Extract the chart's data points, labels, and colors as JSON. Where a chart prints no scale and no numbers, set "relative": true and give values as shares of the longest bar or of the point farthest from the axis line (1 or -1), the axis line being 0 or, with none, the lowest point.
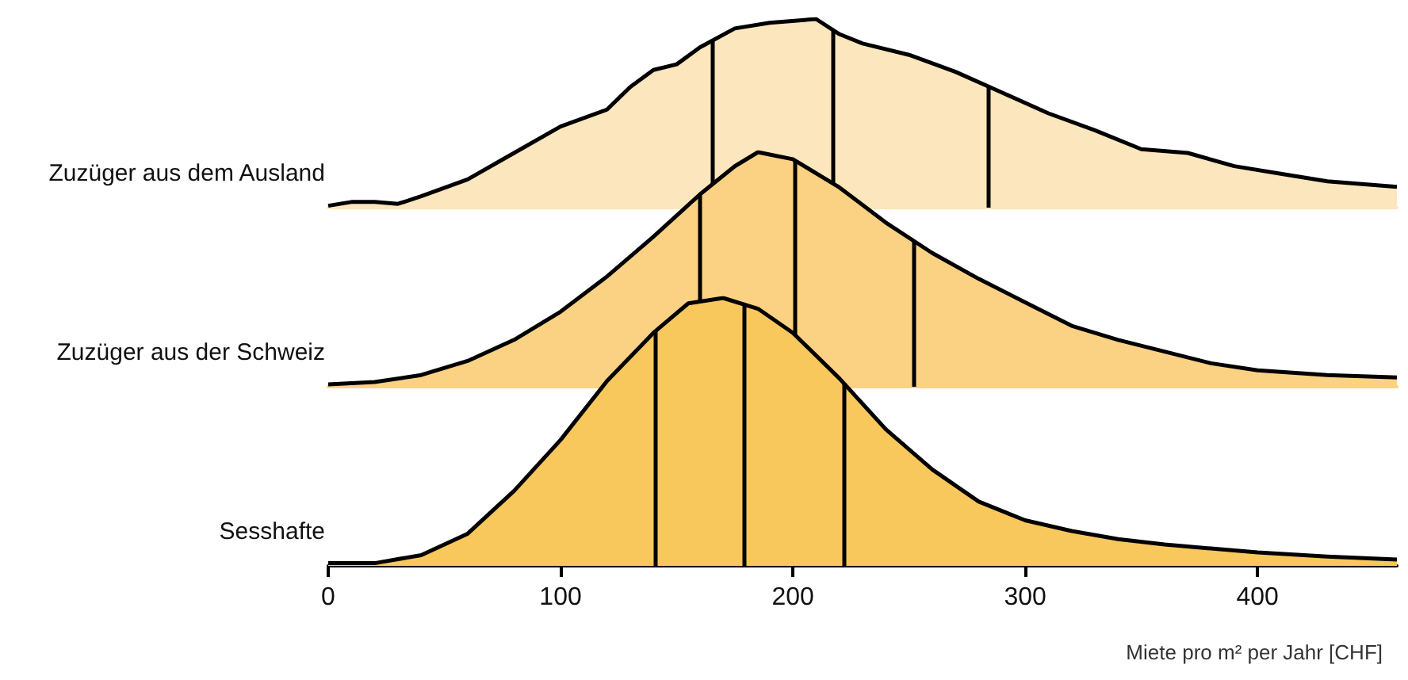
{
  "chart_data": [
    {
      "type": "area",
      "ylabel": "Zuzüger aus dem Ausland",
      "relative": true,
      "xlim": [
        0,
        460
      ],
      "tick_labels": false,
      "line_style": "solid",
      "x": [
        0,
        10,
        20,
        30,
        40,
        60,
        80,
        100,
        120,
        130,
        140,
        150,
        160,
        175,
        190,
        210,
        220,
        230,
        250,
        270,
        290,
        310,
        330,
        350,
        370,
        390,
        410,
        430,
        460
      ],
      "series": [
        {
          "color": "#fce6bd",
          "values": [
            0.01,
            0.03,
            0.03,
            0.02,
            0.06,
            0.15,
            0.29,
            0.43,
            0.52,
            0.64,
            0.73,
            0.76,
            0.85,
            0.95,
            0.98,
            1,
            0.92,
            0.87,
            0.81,
            0.72,
            0.61,
            0.5,
            0.41,
            0.31,
            0.29,
            0.22,
            0.18,
            0.14,
            0.11
          ]
        }
      ],
      "ref_lines": [
        {
          "axis": "x",
          "value": 165,
          "color": "#000000"
        },
        {
          "axis": "x",
          "value": 217,
          "color": "#000000"
        },
        {
          "axis": "x",
          "value": 284,
          "color": "#000000"
        }
      ]
    },
    {
      "type": "area",
      "ylabel": "Zuzüger aus der Schweiz",
      "relative": true,
      "xlim": [
        0,
        460
      ],
      "tick_labels": false,
      "line_style": "solid",
      "x": [
        0,
        20,
        40,
        60,
        80,
        100,
        120,
        140,
        160,
        175,
        185,
        190,
        200,
        220,
        240,
        260,
        280,
        300,
        320,
        340,
        360,
        380,
        400,
        430,
        460
      ],
      "series": [
        {
          "color": "#fbd283",
          "values": [
            0.01,
            0.02,
            0.05,
            0.11,
            0.2,
            0.32,
            0.47,
            0.64,
            0.82,
            0.94,
            1,
            0.99,
            0.97,
            0.85,
            0.7,
            0.57,
            0.46,
            0.36,
            0.26,
            0.2,
            0.15,
            0.1,
            0.07,
            0.05,
            0.04
          ]
        }
      ],
      "ref_lines": [
        {
          "axis": "x",
          "value": 160,
          "color": "#000000"
        },
        {
          "axis": "x",
          "value": 201,
          "color": "#000000"
        },
        {
          "axis": "x",
          "value": 252,
          "color": "#000000"
        }
      ]
    },
    {
      "type": "area",
      "ylabel": "Sesshafte",
      "xlabel": "Miete pro m² per Jahr [CHF]",
      "relative": true,
      "xlim": [
        0,
        460
      ],
      "xticks": [
        0,
        100,
        200,
        300,
        400
      ],
      "tick_labels": "x",
      "line_style": "solid",
      "x": [
        0,
        20,
        40,
        60,
        80,
        100,
        120,
        140,
        155,
        170,
        185,
        200,
        220,
        240,
        260,
        280,
        300,
        320,
        340,
        360,
        380,
        400,
        430,
        460
      ],
      "series": [
        {
          "color": "#f9c85c",
          "values": [
            0.01,
            0.01,
            0.04,
            0.12,
            0.28,
            0.47,
            0.69,
            0.87,
            0.98,
            1,
            0.96,
            0.87,
            0.7,
            0.51,
            0.36,
            0.24,
            0.17,
            0.13,
            0.1,
            0.08,
            0.065,
            0.05,
            0.035,
            0.024
          ]
        }
      ],
      "ref_lines": [
        {
          "axis": "x",
          "value": 141,
          "color": "#000000"
        },
        {
          "axis": "x",
          "value": 179,
          "color": "#000000"
        },
        {
          "axis": "x",
          "value": 222,
          "color": "#000000"
        }
      ]
    }
  ]
}
